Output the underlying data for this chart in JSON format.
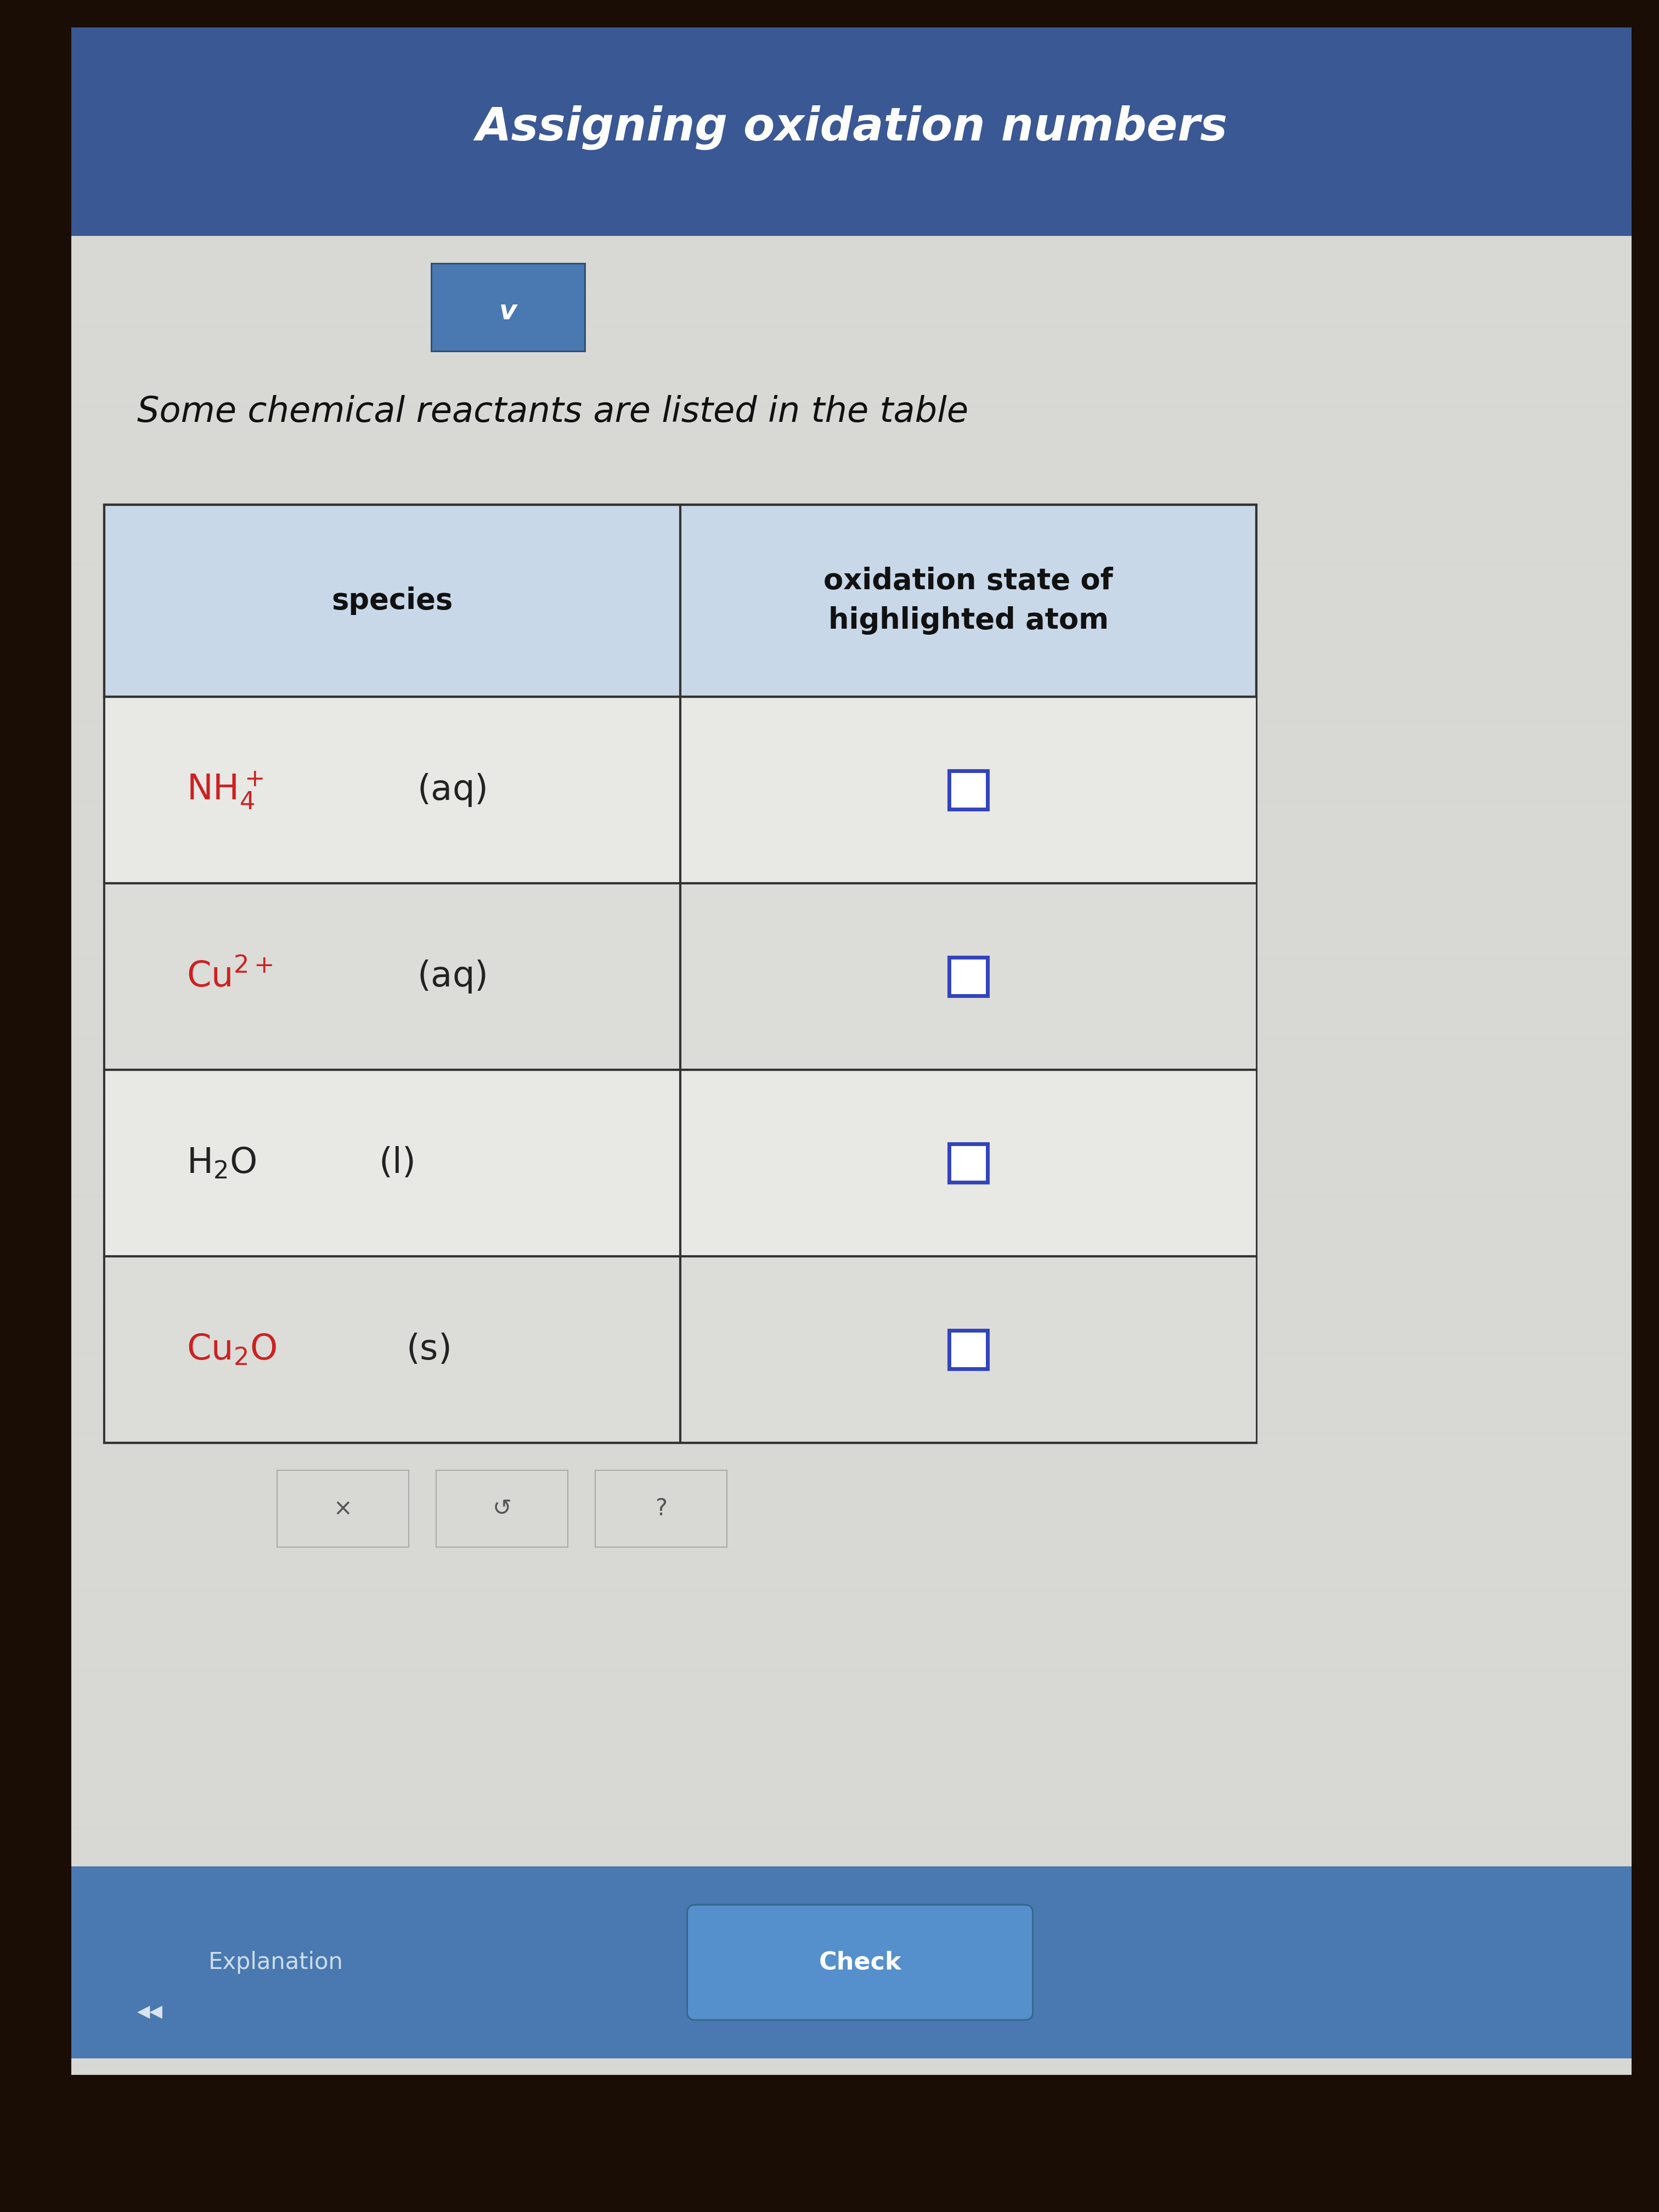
{
  "title": "Assigning oxidation numbers",
  "subtitle": "Some chemical reactants are listed in the table",
  "header_col1": "species",
  "header_col2": "oxidation state of\nhighlighted atom",
  "title_bg": "#3a5893",
  "title_color": "#ffffff",
  "page_bg": "#d8d8d4",
  "table_bg_even": "#e8e8e4",
  "table_bg_odd": "#d0d0cc",
  "header_bg": "#c8d8e8",
  "border_color": "#333333",
  "checkbox_color": "#3344bb",
  "bottom_bar_color": "#4a78b0",
  "dropdown_color": "#4a78b0",
  "wood_color": "#1a0d05",
  "explanation_text": "Explanation",
  "check_button_text": "Check",
  "species_red": "#cc2222",
  "species_dark": "#222222"
}
